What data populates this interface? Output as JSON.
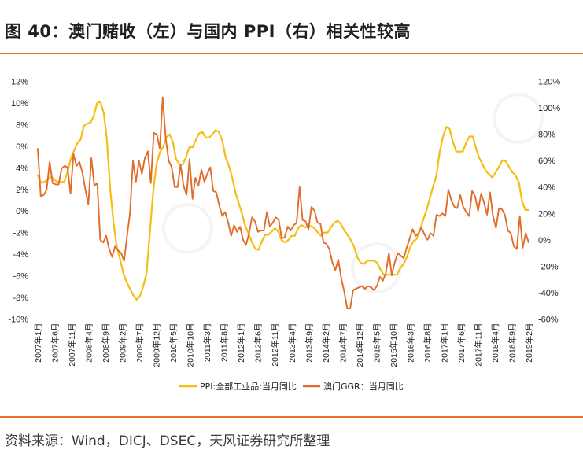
{
  "title": "图 40：澳门赌收（左）与国内 PPI（右）相关性较高",
  "source": "资料来源：Wind，DICJ、DSEC，天风证券研究所整理",
  "colors": {
    "accent": "#e8712c",
    "ppi": "#f5be14",
    "ggr": "#e26d2a"
  },
  "chart_data": {
    "type": "line",
    "x_labels": [
      "2007年1月",
      "2007年6月",
      "2007年11月",
      "2008年4月",
      "2008年9月",
      "2009年2月",
      "2009年7月",
      "2009年12月",
      "2010年5月",
      "2010年10月",
      "2011年3月",
      "2011年8月",
      "2012年1月",
      "2012年6月",
      "2012年11月",
      "2013年4月",
      "2013年9月",
      "2014年2月",
      "2014年7月",
      "2014年12月",
      "2015年5月",
      "2015年10月",
      "2016年3月",
      "2016年8月",
      "2017年1月",
      "2017年6月",
      "2017年11月",
      "2018年4月",
      "2018年9月",
      "2019年2月"
    ],
    "y_left": {
      "ticks": [
        "12%",
        "10%",
        "8%",
        "6%",
        "4%",
        "2%",
        "0%",
        "-2%",
        "-4%",
        "-6%",
        "-8%",
        "-10%"
      ],
      "min": -10,
      "max": 12
    },
    "y_right": {
      "ticks": [
        "120%",
        "100%",
        "80%",
        "60%",
        "40%",
        "20%",
        "0%",
        "-20%",
        "-40%",
        "-60%"
      ],
      "min": -60,
      "max": 120
    },
    "legend_position": "bottom",
    "series": [
      {
        "name": "PPI:全部工业品:当月同比",
        "axis": "left",
        "color": "#f5be14",
        "values": [
          3.3,
          2.6,
          2.7,
          2.9,
          3.2,
          2.9,
          2.7,
          2.7,
          2.7,
          3.6,
          4.8,
          5.6,
          6.3,
          6.6,
          7.9,
          8.1,
          8.2,
          8.8,
          10.0,
          10.1,
          9.1,
          6.6,
          2.0,
          -1.1,
          -3.3,
          -4.5,
          -5.8,
          -6.6,
          -7.2,
          -7.8,
          -8.2,
          -7.9,
          -7.0,
          -5.8,
          -2.1,
          1.7,
          4.3,
          5.4,
          5.9,
          6.8,
          7.1,
          6.4,
          4.8,
          4.3,
          4.3,
          5.0,
          5.9,
          5.9,
          6.6,
          7.2,
          7.3,
          6.8,
          6.8,
          7.1,
          7.5,
          7.3,
          6.5,
          5.0,
          4.2,
          3.1,
          1.7,
          0.7,
          -0.3,
          -1.4,
          -2.1,
          -2.9,
          -3.5,
          -3.6,
          -2.8,
          -2.2,
          -2.2,
          -1.9,
          -1.6,
          -1.9,
          -2.7,
          -2.9,
          -2.7,
          -2.3,
          -2.3,
          -1.6,
          -1.3,
          -1.5,
          -1.5,
          -1.4,
          -1.6,
          -2.0,
          -2.3,
          -2.0,
          -2.0,
          -1.5,
          -1.1,
          -0.9,
          -1.2,
          -1.8,
          -2.2,
          -2.7,
          -3.3,
          -4.3,
          -4.8,
          -4.9,
          -4.6,
          -4.6,
          -4.6,
          -4.8,
          -5.4,
          -5.9,
          -5.9,
          -5.9,
          -5.9,
          -5.9,
          -5.3,
          -4.9,
          -4.3,
          -3.4,
          -2.8,
          -2.6,
          -1.7,
          -0.8,
          0.1,
          1.2,
          2.3,
          3.3,
          5.5,
          6.9,
          7.8,
          7.6,
          6.4,
          5.5,
          5.5,
          5.5,
          6.3,
          6.9,
          6.9,
          5.8,
          4.9,
          4.3,
          3.7,
          3.4,
          3.1,
          3.6,
          4.1,
          4.7,
          4.6,
          4.1,
          3.6,
          3.3,
          2.7,
          0.9,
          0.1,
          0.1
        ]
      },
      {
        "name": "澳门GGR：当月同比",
        "axis": "right",
        "color": "#e26d2a",
        "values": [
          69,
          33,
          34,
          38,
          59,
          43,
          42,
          42,
          54,
          56,
          55,
          35,
          65,
          56,
          59,
          51,
          38,
          27,
          62,
          41,
          43,
          0,
          -2,
          3,
          -7,
          -13,
          -5,
          -8,
          -10,
          -16,
          3,
          20,
          60,
          44,
          60,
          50,
          62,
          67,
          43,
          81,
          80,
          69,
          108,
          77,
          60,
          55,
          40,
          40,
          57,
          41,
          34,
          61,
          31,
          47,
          41,
          53,
          44,
          50,
          55,
          37,
          36,
          26,
          18,
          21,
          13,
          3,
          11,
          6,
          10,
          0,
          -4,
          5,
          17,
          14,
          6,
          7,
          7,
          21,
          10,
          13,
          17,
          15,
          1,
          2,
          10,
          7,
          11,
          13,
          40,
          15,
          14,
          8,
          25,
          22,
          13,
          12,
          -2,
          -3,
          -7,
          -17,
          -23,
          -15,
          -29,
          -39,
          -52,
          -52,
          -38,
          -37,
          -36,
          -35,
          -37,
          -35,
          -36,
          -38,
          -35,
          -28,
          -31,
          -25,
          -10,
          -27,
          -17,
          -10,
          -12,
          -14,
          -6,
          1,
          8,
          3,
          5,
          9,
          4,
          0,
          5,
          3,
          19,
          18,
          20,
          18,
          38,
          30,
          25,
          24,
          34,
          25,
          21,
          18,
          37,
          33,
          22,
          35,
          28,
          19,
          36,
          18,
          9,
          24,
          23,
          19,
          7,
          5,
          -5,
          -7,
          18,
          -6,
          5,
          -2
        ]
      }
    ]
  }
}
